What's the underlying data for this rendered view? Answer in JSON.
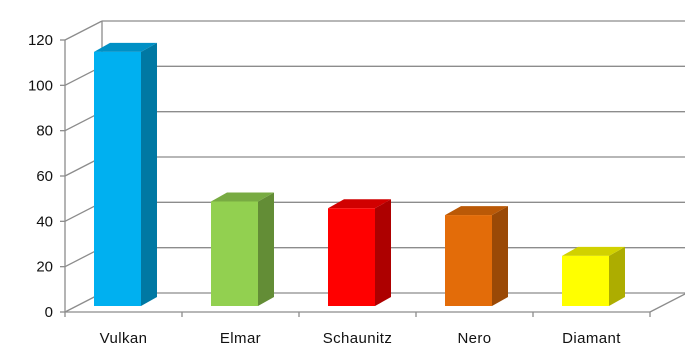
{
  "chart_data": {
    "type": "bar",
    "style": "3d-column",
    "categories": [
      "Vulkan",
      "Elmar",
      "Schaunitz",
      "Nero",
      "Diamant"
    ],
    "values": [
      113,
      47,
      44,
      41,
      23
    ],
    "colors": [
      "#00B0F0",
      "#92D050",
      "#FF0000",
      "#E36C09",
      "#FFFF00"
    ],
    "ylim": [
      0,
      120
    ],
    "yticks": [
      "0",
      "20",
      "40",
      "60",
      "80",
      "100",
      "120"
    ],
    "grid": true,
    "legend": "none",
    "title": "",
    "xlabel": "",
    "ylabel": ""
  }
}
